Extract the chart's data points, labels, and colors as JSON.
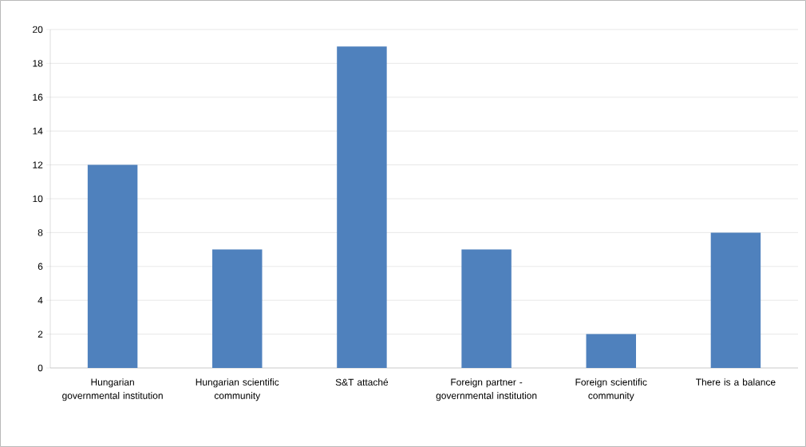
{
  "chart_data": {
    "type": "bar",
    "categories": [
      "Hungarian governmental institution",
      "Hungarian scientific community",
      "S&T attaché",
      "Foreign partner - governmental institution",
      "Foreign scientific community",
      "There is a balance"
    ],
    "values": [
      12,
      7,
      19,
      7,
      2,
      8
    ],
    "color": "#4f81bd",
    "ylim": [
      0,
      20
    ],
    "yticks": [
      0,
      2,
      4,
      6,
      8,
      10,
      12,
      14,
      16,
      18,
      20
    ],
    "grid": "y"
  }
}
